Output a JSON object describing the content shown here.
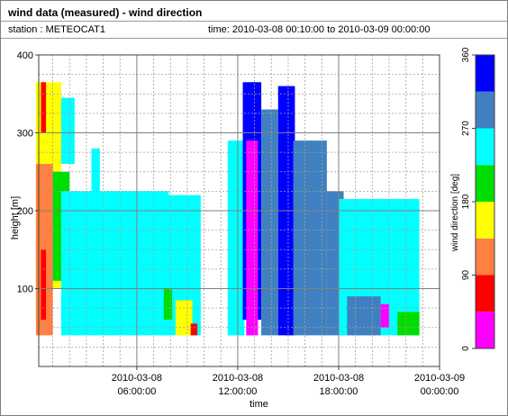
{
  "header": {
    "title": "wind data (measured) - wind direction",
    "station": "station : METEOCAT1",
    "timerange": "time: 2010-03-08 00:10:00 to 2010-03-09 00:00:00"
  },
  "chart_data": {
    "type": "heatmap",
    "title": "wind data (measured) - wind direction",
    "xlabel": "time",
    "ylabel": "height [m]",
    "xlim": [
      "2010-03-08 00:10:00",
      "2010-03-09 00:00:00"
    ],
    "ylim": [
      0,
      400
    ],
    "grid": true,
    "x_ticks": [
      {
        "hour": 6,
        "line1": "2010-03-08",
        "line2": "06:00:00"
      },
      {
        "hour": 12,
        "line1": "2010-03-08",
        "line2": "12:00:00"
      },
      {
        "hour": 18,
        "line1": "2010-03-08",
        "line2": "18:00:00"
      },
      {
        "hour": 24,
        "line1": "2010-03-09",
        "line2": "00:00:00"
      }
    ],
    "y_ticks": [
      100,
      200,
      300,
      400
    ],
    "colorbar": {
      "label": "wind direction [deg]",
      "ticks": [
        0,
        90,
        180,
        270,
        360
      ],
      "bins": [
        {
          "from": 0,
          "to": 45,
          "color": "#ff00ff"
        },
        {
          "from": 45,
          "to": 90,
          "color": "#ff0000"
        },
        {
          "from": 90,
          "to": 135,
          "color": "#ff8040"
        },
        {
          "from": 135,
          "to": 180,
          "color": "#ffff00"
        },
        {
          "from": 180,
          "to": 225,
          "color": "#00dd00"
        },
        {
          "from": 225,
          "to": 270,
          "color": "#00ffff"
        },
        {
          "from": 270,
          "to": 315,
          "color": "#4080c0"
        },
        {
          "from": 315,
          "to": 360,
          "color": "#0000ff"
        }
      ]
    },
    "series": [
      {
        "hours": [
          0.0,
          1.5
        ],
        "direction_deg": 135,
        "heights": [
          [
            100,
            365
          ]
        ]
      },
      {
        "hours": [
          0.0,
          1.0
        ],
        "direction_deg": 112,
        "heights": [
          [
            40,
            260
          ]
        ]
      },
      {
        "hours": [
          0.3,
          0.6
        ],
        "direction_deg": 67,
        "heights": [
          [
            60,
            150
          ],
          [
            300,
            365
          ]
        ]
      },
      {
        "hours": [
          1.0,
          2.0
        ],
        "direction_deg": 200,
        "heights": [
          [
            110,
            250
          ]
        ]
      },
      {
        "hours": [
          1.5,
          2.3
        ],
        "direction_deg": 250,
        "heights": [
          [
            260,
            345
          ]
        ]
      },
      {
        "hours": [
          1.5,
          7.9
        ],
        "direction_deg": 250,
        "heights": [
          [
            40,
            225
          ]
        ]
      },
      {
        "hours": [
          3.3,
          3.8
        ],
        "direction_deg": 250,
        "heights": [
          [
            225,
            280
          ]
        ]
      },
      {
        "hours": [
          7.4,
          9.8
        ],
        "direction_deg": 250,
        "heights": [
          [
            40,
            220
          ]
        ]
      },
      {
        "hours": [
          8.3,
          9.3
        ],
        "direction_deg": 150,
        "heights": [
          [
            40,
            85
          ]
        ]
      },
      {
        "hours": [
          7.6,
          8.1
        ],
        "direction_deg": 200,
        "heights": [
          [
            60,
            100
          ]
        ]
      },
      {
        "hours": [
          9.2,
          9.6
        ],
        "direction_deg": 60,
        "heights": [
          [
            40,
            55
          ]
        ]
      },
      {
        "hours": [
          11.4,
          12.4
        ],
        "direction_deg": 250,
        "heights": [
          [
            40,
            290
          ]
        ]
      },
      {
        "hours": [
          12.3,
          13.4
        ],
        "direction_deg": 340,
        "heights": [
          [
            60,
            365
          ]
        ]
      },
      {
        "hours": [
          12.5,
          13.2
        ],
        "direction_deg": 20,
        "heights": [
          [
            40,
            290
          ]
        ]
      },
      {
        "hours": [
          13.4,
          14.4
        ],
        "direction_deg": 290,
        "heights": [
          [
            40,
            330
          ]
        ]
      },
      {
        "hours": [
          14.4,
          15.4
        ],
        "direction_deg": 340,
        "heights": [
          [
            40,
            360
          ]
        ]
      },
      {
        "hours": [
          15.3,
          17.3
        ],
        "direction_deg": 290,
        "heights": [
          [
            40,
            290
          ]
        ]
      },
      {
        "hours": [
          17.3,
          18.3
        ],
        "direction_deg": 290,
        "heights": [
          [
            40,
            225
          ]
        ]
      },
      {
        "hours": [
          18.0,
          22.8
        ],
        "direction_deg": 250,
        "heights": [
          [
            40,
            215
          ]
        ]
      },
      {
        "hours": [
          18.5,
          20.5
        ],
        "direction_deg": 290,
        "heights": [
          [
            40,
            90
          ]
        ]
      },
      {
        "hours": [
          20.5,
          21.0
        ],
        "direction_deg": 20,
        "heights": [
          [
            50,
            80
          ]
        ]
      },
      {
        "hours": [
          21.5,
          22.8
        ],
        "direction_deg": 200,
        "heights": [
          [
            40,
            70
          ]
        ]
      }
    ]
  }
}
